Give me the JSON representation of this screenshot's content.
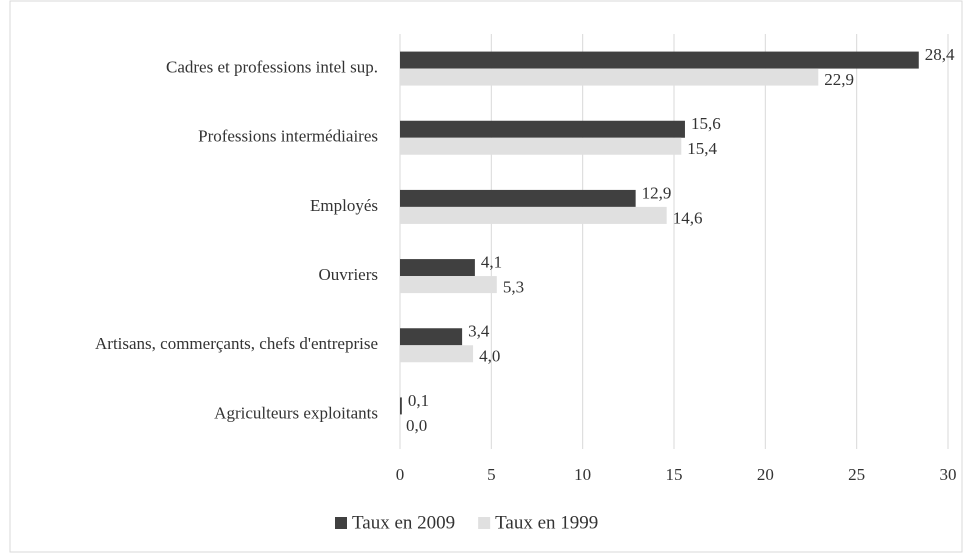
{
  "chart_data": {
    "type": "bar",
    "orientation": "horizontal",
    "categories": [
      "Cadres et professions intel sup.",
      "Professions intermédiaires",
      "Employés",
      "Ouvriers",
      "Artisans, commerçants, chefs d'entreprise",
      "Agriculteurs exploitants"
    ],
    "series": [
      {
        "name": "Taux en 2009",
        "color": "#404040",
        "values": [
          28.4,
          15.6,
          12.9,
          4.1,
          3.4,
          0.1
        ],
        "value_labels": [
          "28,4",
          "15,6",
          "12,9",
          "4,1",
          "3,4",
          "0,1"
        ]
      },
      {
        "name": "Taux en 1999",
        "color": "#e0e0e0",
        "values": [
          22.9,
          15.4,
          14.6,
          5.3,
          4.0,
          0.0
        ],
        "value_labels": [
          "22,9",
          "15,4",
          "14,6",
          "5,3",
          "4,0",
          "0,0"
        ]
      }
    ],
    "xlim": [
      0,
      30
    ],
    "xticks": [
      0,
      5,
      10,
      15,
      20,
      25,
      30
    ],
    "grid": true,
    "legend": "bottom"
  }
}
